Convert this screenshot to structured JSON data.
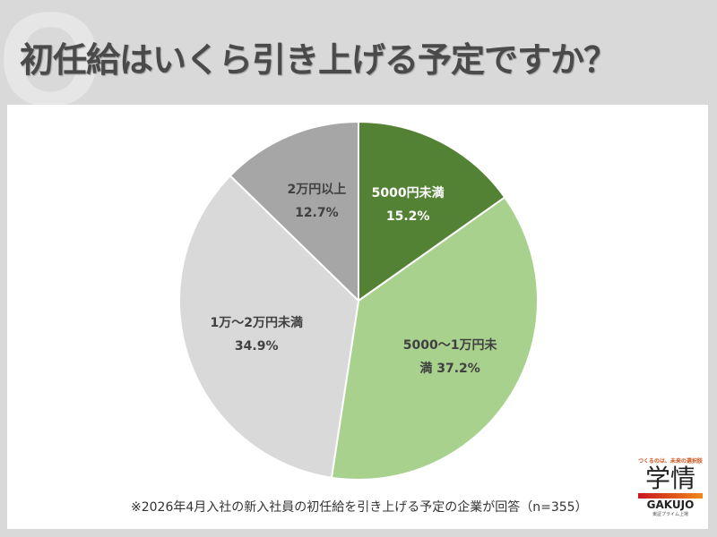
{
  "title": "初任給はいくら引き上げる予定ですか？",
  "watermark": "Q",
  "footnote": "※2026年4月入社の新入社員の初任給を引き上げる予定の企業が回答（n=355）",
  "logo": {
    "tagline": "つくるのは、未来の選択肢",
    "name": "学情",
    "name_en": "GAKUJO",
    "sub": "東証プライム上場"
  },
  "chart_data": {
    "type": "pie",
    "start": "top",
    "direction": "clockwise",
    "slices": [
      {
        "label": "5000円未満",
        "value": 15.2,
        "text": "15.2%",
        "color": "#548235",
        "text_color": "#ffffff"
      },
      {
        "label": "5000〜1万円未満",
        "value": 37.2,
        "text": "37.2%",
        "color": "#a9d18e",
        "text_color": "#404040"
      },
      {
        "label": "1万〜2万円未満",
        "value": 34.9,
        "text": "34.9%",
        "color": "#d9d9d9",
        "text_color": "#404040"
      },
      {
        "label": "2万円以上",
        "value": 12.7,
        "text": "12.7%",
        "color": "#a6a6a6",
        "text_color": "#404040"
      }
    ]
  }
}
